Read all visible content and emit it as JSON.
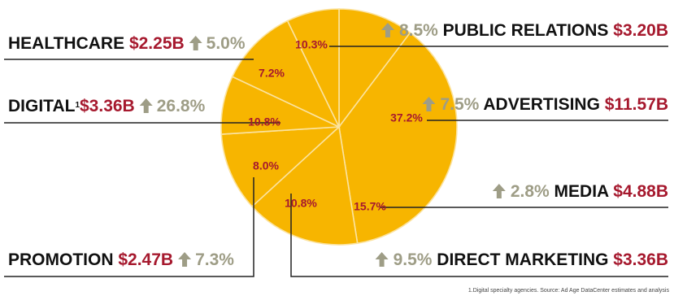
{
  "chart_data": {
    "type": "pie",
    "slices": [
      {
        "category": "PUBLIC RELATIONS",
        "share": 10.3,
        "amount": "$3.20B",
        "change": "8.5%"
      },
      {
        "category": "ADVERTISING",
        "share": 37.2,
        "amount": "$11.57B",
        "change": "7.5%"
      },
      {
        "category": "MEDIA",
        "share": 15.7,
        "amount": "$4.88B",
        "change": "2.8%"
      },
      {
        "category": "DIRECT MARKETING",
        "share": 10.8,
        "amount": "$3.36B",
        "change": "9.5%"
      },
      {
        "category": "PROMOTION",
        "share": 8.0,
        "amount": "$2.47B",
        "change": "7.3%"
      },
      {
        "category": "DIGITAL",
        "footnote_mark": "1",
        "share": 10.8,
        "amount": "$3.36B",
        "change": "26.8%"
      },
      {
        "category": "HEALTHCARE",
        "share": 7.2,
        "amount": "$2.25B",
        "change": "5.0%"
      }
    ],
    "slice_labels": [
      "10.3%",
      "37.2%",
      "15.7%",
      "10.8%",
      "8.0%",
      "10.8%",
      "7.2%"
    ],
    "colors": {
      "fill": "#f7b500",
      "divider": "#fbe3a0",
      "amount": "#a6192e",
      "change": "#9e9d86",
      "leader": "#222222"
    },
    "footnote": "1.Digital specialty agencies. Source: Ad Age DataCenter estimates and analysis"
  }
}
